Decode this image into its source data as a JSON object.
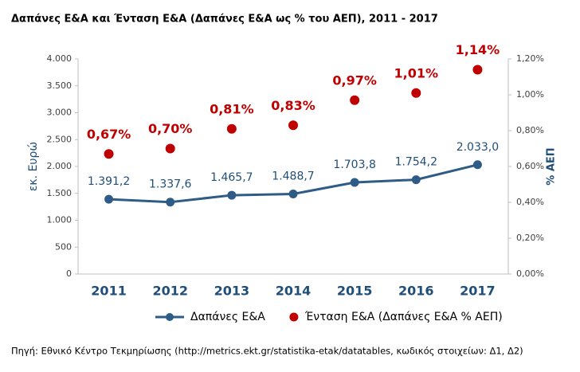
{
  "chart_data": {
    "type": "line",
    "title": "Δαπάνες Ε&Α και Ένταση Ε&Α (Δαπάνες Ε&Α ως % του ΑΕΠ), 2011 - 2017",
    "ylabel": "εκ. Ευρώ",
    "y2label": "% ΑΕΠ",
    "source": "Πηγή: Εθνικό Κέντρο Τεκμηρίωσης (http://metrics.ekt.gr/statistika-etak/datatables, κωδικός στοιχείων: Δ1, Δ2)",
    "categories": [
      "2011",
      "2012",
      "2013",
      "2014",
      "2015",
      "2016",
      "2017"
    ],
    "series": [
      {
        "name": "Δαπάνες Ε&Α",
        "color": "#2e5c87",
        "style": "line",
        "values": [
          1391.2,
          1337.6,
          1465.7,
          1488.7,
          1703.8,
          1754.2,
          2033.0
        ],
        "value_labels": [
          "1.391,2",
          "1.337,6",
          "1.465,7",
          "1.488,7",
          "1.703,8",
          "1.754,2",
          "2.033,0"
        ]
      },
      {
        "name": "Ένταση Ε&Α (Δαπάνες Ε&Α % ΑΕΠ)",
        "color": "#c00000",
        "style": "markers",
        "axis": "y2",
        "values": [
          0.67,
          0.7,
          0.81,
          0.83,
          0.97,
          1.01,
          1.14
        ],
        "value_labels": [
          "0,67%",
          "0,70%",
          "0,81%",
          "0,83%",
          "0,97%",
          "1,01%",
          "1,14%"
        ]
      }
    ],
    "ylim": [
      0,
      4000
    ],
    "yticks": [
      0,
      {
        "value": 500,
        "label": "500"
      },
      {
        "value": 1000,
        "label": "1.000"
      },
      {
        "value": 1500,
        "label": "1.500"
      },
      {
        "value": 2000,
        "label": "2.000"
      },
      {
        "value": 2500,
        "label": "2.500"
      },
      {
        "value": 3000,
        "label": "3.000"
      },
      {
        "value": 3500,
        "label": "3.500"
      },
      {
        "value": 4000,
        "label": "4.000"
      }
    ],
    "y2lim": [
      0,
      1.2
    ],
    "y2ticks": [
      {
        "value": 0,
        "label": "0,00%"
      },
      {
        "value": 0.2,
        "label": "0,20%"
      },
      {
        "value": 0.4,
        "label": "0,40%"
      },
      {
        "value": 0.6,
        "label": "0,60%"
      },
      {
        "value": 0.8,
        "label": "0,80%"
      },
      {
        "value": 1.0,
        "label": "1,00%"
      },
      {
        "value": 1.2,
        "label": "1,20%"
      }
    ],
    "grid": false,
    "legend": "bottom"
  }
}
